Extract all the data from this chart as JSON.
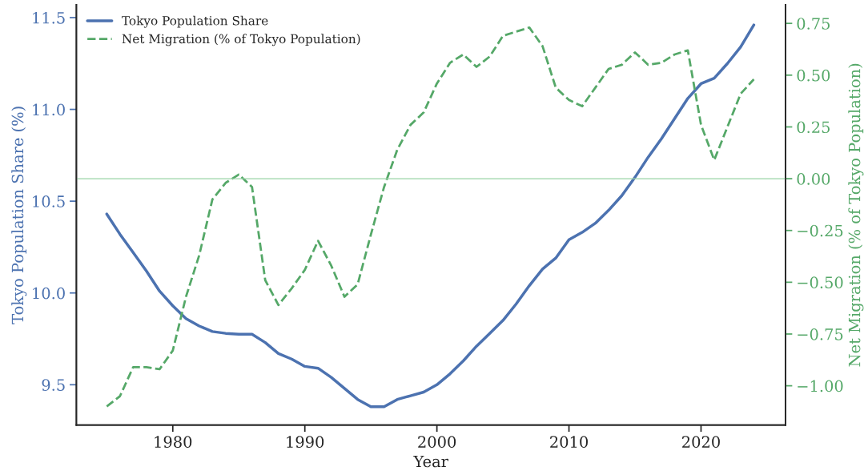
{
  "chart_data": {
    "type": "line",
    "xlabel": "Year",
    "ylabel": "Tokyo Population Share (%)",
    "y2label": "Net Migration (% of Tokyo Population)",
    "x": [
      1975,
      1976,
      1977,
      1978,
      1979,
      1980,
      1981,
      1982,
      1983,
      1984,
      1985,
      1986,
      1987,
      1988,
      1989,
      1990,
      1991,
      1992,
      1993,
      1994,
      1995,
      1996,
      1997,
      1998,
      1999,
      2000,
      2001,
      2002,
      2003,
      2004,
      2005,
      2006,
      2007,
      2008,
      2009,
      2010,
      2011,
      2012,
      2013,
      2014,
      2015,
      2016,
      2017,
      2018,
      2019,
      2020,
      2021,
      2022,
      2023,
      2024
    ],
    "series": [
      {
        "name": "Tokyo Population Share",
        "color": "#4c72b0",
        "line_style": "solid",
        "values": [
          10.43,
          10.32,
          10.22,
          10.12,
          10.01,
          9.93,
          9.86,
          9.82,
          9.79,
          9.78,
          9.775,
          9.775,
          9.73,
          9.67,
          9.64,
          9.6,
          9.59,
          9.54,
          9.48,
          9.42,
          9.38,
          9.38,
          9.42,
          9.44,
          9.46,
          9.5,
          9.56,
          9.63,
          9.71,
          9.78,
          9.85,
          9.94,
          10.04,
          10.13,
          10.19,
          10.29,
          10.33,
          10.38,
          10.45,
          10.53,
          10.63,
          10.74,
          10.84,
          10.95,
          11.06,
          11.14,
          11.17,
          11.25,
          11.34,
          11.46
        ]
      },
      {
        "name": "Net Migration (% of Tokyo Population)",
        "color": "#55a868",
        "line_style": "dashed",
        "axis": "y2",
        "values": [
          -1.1,
          -1.05,
          -0.91,
          -0.91,
          -0.92,
          -0.83,
          -0.57,
          -0.37,
          -0.1,
          -0.02,
          0.02,
          -0.04,
          -0.49,
          -0.61,
          -0.53,
          -0.44,
          -0.3,
          -0.42,
          -0.57,
          -0.51,
          -0.27,
          -0.04,
          0.14,
          0.26,
          0.32,
          0.46,
          0.56,
          0.6,
          0.54,
          0.59,
          0.69,
          0.71,
          0.73,
          0.64,
          0.44,
          0.38,
          0.35,
          0.44,
          0.53,
          0.55,
          0.61,
          0.55,
          0.56,
          0.6,
          0.62,
          0.26,
          0.09,
          0.25,
          0.41,
          0.48
        ]
      }
    ],
    "xlim": [
      1972.7,
      2026.4
    ],
    "xticks": [
      1980,
      1990,
      2000,
      2010,
      2020
    ],
    "ylim": [
      9.28,
      11.57
    ],
    "yticks": [
      9.5,
      {
        "value": 10,
        "label": "10.0"
      },
      10.5,
      {
        "value": 11,
        "label": "11.0"
      },
      11.5
    ],
    "y2lim": [
      -1.19,
      0.84
    ],
    "y2ticks": [
      {
        "value": -1.0,
        "label": "−1.00"
      },
      {
        "value": -0.75,
        "label": "−0.75"
      },
      {
        "value": -0.5,
        "label": "−0.50"
      },
      {
        "value": -0.25,
        "label": "−0.25"
      },
      {
        "value": 0.0,
        "label": "0.00"
      },
      {
        "value": 0.25,
        "label": "0.25"
      },
      {
        "value": 0.5,
        "label": "0.50"
      },
      {
        "value": 0.75,
        "label": "0.75"
      }
    ],
    "ref_lines": [
      {
        "axis": "y2",
        "value": 0,
        "label": null,
        "color": "#99d3a6"
      }
    ],
    "grid": false,
    "legend": "top left",
    "marker": "none"
  }
}
